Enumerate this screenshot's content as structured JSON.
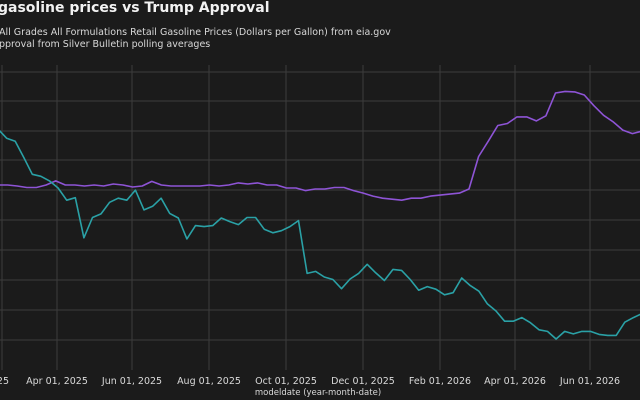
{
  "title": "gasoline prices vs Trump Approval",
  "subtitles": [
    "All Grades All Formulations Retail Gasoline Prices (Dollars per Gallon) from eia.gov",
    "pproval from Silver Bulletin polling averages"
  ],
  "colors": {
    "background": "#1b1b1b",
    "grid": "#3c3c3c",
    "gas_series": "#2aa1a6",
    "approval_series": "#8e54d6"
  },
  "chart_data": {
    "type": "line",
    "xlabel": "modeldate (year-month-date)",
    "ylabel": "",
    "grid": true,
    "x_tick_labels": [
      "25",
      "Apr 01, 2025",
      "Jun 01, 2025",
      "Aug 01, 2025",
      "Oct 01, 2025",
      "Dec 01, 2025",
      "Feb 01, 2026",
      "Apr 01, 2026",
      "Jun 01, 2026"
    ],
    "series": [
      {
        "color": "#8e54d6",
        "values": [
          46.4,
          46.4,
          46.2,
          45.9,
          45.9,
          46.4,
          47.2,
          46.4,
          46.4,
          46.2,
          46.4,
          46.2,
          46.6,
          46.4,
          46.0,
          46.2,
          47.1,
          46.4,
          46.2,
          46.2,
          46.2,
          46.2,
          46.4,
          46.2,
          46.4,
          46.8,
          46.6,
          46.8,
          46.4,
          46.4,
          45.8,
          45.8,
          45.3,
          45.6,
          45.6,
          45.9,
          45.9,
          45.3,
          44.8,
          44.2,
          43.8,
          43.6,
          43.4,
          43.8,
          43.8,
          44.2,
          44.4,
          44.6,
          44.8,
          45.6,
          52.0,
          55.0,
          58.1,
          58.5,
          59.8,
          59.8,
          59.0,
          60.0,
          64.5,
          64.8,
          64.7,
          64.1,
          62.0,
          60.1,
          58.8,
          57.2,
          56.5,
          57.0
        ]
      },
      {
        "color": "#2aa1a6",
        "values": [
          57.4,
          55.6,
          55.0,
          51.8,
          48.5,
          48.1,
          47.2,
          45.8,
          43.4,
          43.9,
          36.0,
          40.0,
          40.7,
          43.0,
          43.8,
          43.4,
          45.4,
          41.5,
          42.2,
          43.8,
          40.8,
          39.9,
          35.8,
          38.4,
          38.2,
          38.4,
          39.9,
          39.2,
          38.6,
          40.0,
          40.0,
          37.7,
          37.0,
          37.4,
          38.2,
          39.4,
          29.0,
          29.4,
          28.3,
          27.8,
          26.0,
          27.9,
          29.0,
          30.8,
          29.1,
          27.6,
          29.8,
          29.6,
          27.8,
          25.7,
          26.4,
          25.9,
          24.8,
          25.2,
          28.1,
          26.6,
          25.5,
          23.0,
          21.6,
          19.6,
          19.6,
          20.3,
          19.3,
          17.9,
          17.6,
          16.1,
          17.6,
          17.1,
          17.6,
          17.6,
          17.0,
          16.8,
          16.8,
          19.4,
          20.3,
          21.1
        ]
      }
    ]
  }
}
